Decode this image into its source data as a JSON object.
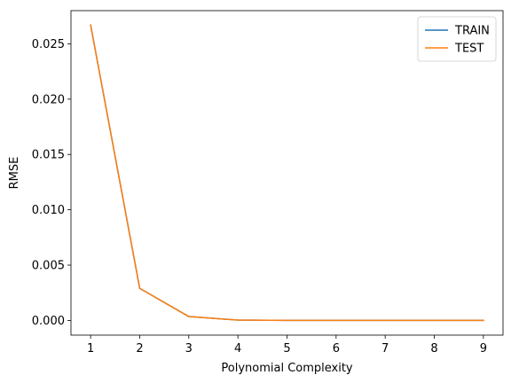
{
  "chart_data": {
    "type": "line",
    "title": "",
    "xlabel": "Polynomial Complexity",
    "ylabel": "RMSE",
    "x": [
      1,
      2,
      3,
      4,
      5,
      6,
      7,
      8,
      9
    ],
    "xlim": [
      0.6,
      9.4
    ],
    "ylim": [
      -0.00133,
      0.028
    ],
    "xticks": [
      1,
      2,
      3,
      4,
      5,
      6,
      7,
      8,
      9
    ],
    "xtick_labels": [
      "1",
      "2",
      "3",
      "4",
      "5",
      "6",
      "7",
      "8",
      "9"
    ],
    "yticks": [
      0.0,
      0.005,
      0.01,
      0.015,
      0.02,
      0.025
    ],
    "ytick_labels": [
      "0.000",
      "0.005",
      "0.010",
      "0.015",
      "0.020",
      "0.025"
    ],
    "grid": false,
    "legend_position": "top-right",
    "series": [
      {
        "name": "TRAIN",
        "color": "#1f77b4",
        "values": [
          0.0267,
          0.0029,
          0.00035,
          3e-05,
          0.0,
          0.0,
          0.0,
          0.0,
          0.0
        ]
      },
      {
        "name": "TEST",
        "color": "#ff7f0e",
        "values": [
          0.0267,
          0.0029,
          0.00035,
          3e-05,
          0.0,
          0.0,
          0.0,
          0.0,
          0.0
        ]
      }
    ]
  }
}
